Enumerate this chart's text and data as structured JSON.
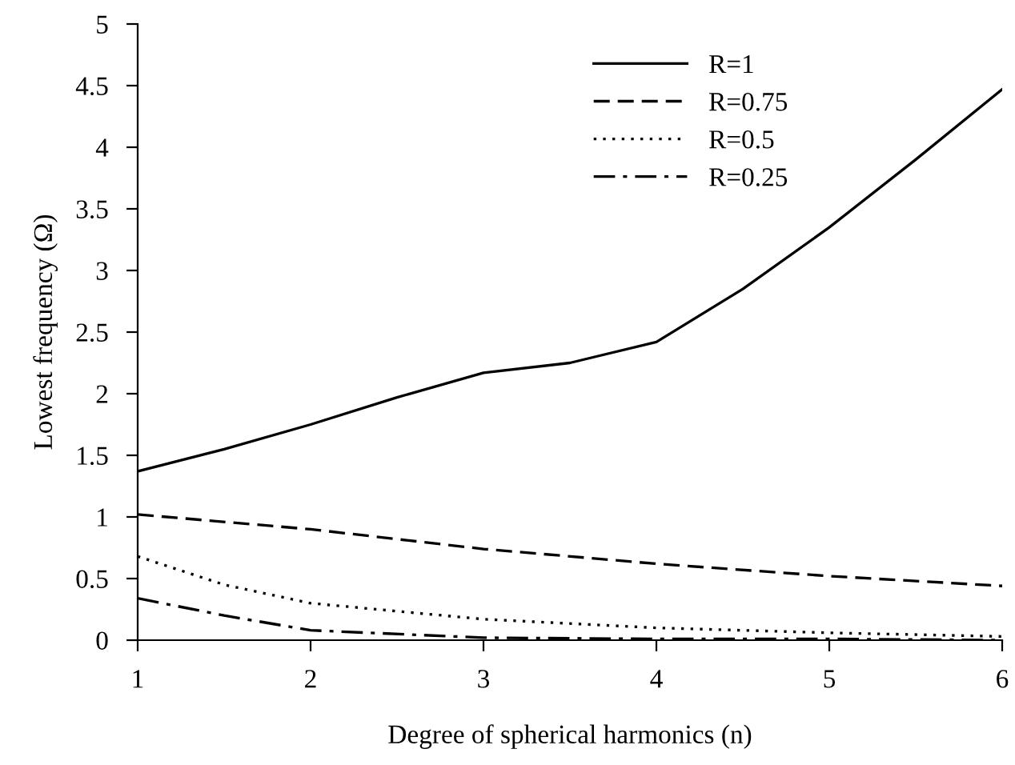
{
  "chart_data": {
    "type": "line",
    "xlabel": "Degree of spherical harmonics (n)",
    "ylabel": "Lowest frequency (Ω)",
    "xlim": [
      1,
      6
    ],
    "ylim": [
      0,
      5
    ],
    "xticks": [
      1,
      2,
      3,
      4,
      5,
      6
    ],
    "yticks": [
      0,
      0.5,
      1,
      1.5,
      2,
      2.5,
      3,
      3.5,
      4,
      4.5,
      5
    ],
    "grid": false,
    "legend": "top right",
    "marker": "none",
    "series": [
      {
        "name": "R=1",
        "color": "#000000",
        "line_style": "solid",
        "x": [
          1,
          1.5,
          2,
          2.5,
          3,
          3.5,
          4,
          4.5,
          5,
          5.5,
          6
        ],
        "values": [
          1.37,
          1.55,
          1.75,
          1.97,
          2.17,
          2.25,
          2.42,
          2.85,
          3.35,
          3.9,
          4.47
        ]
      },
      {
        "name": "R=0.75",
        "color": "#000000",
        "line_style": "dashed",
        "x": [
          1,
          2,
          3,
          4,
          5,
          6
        ],
        "values": [
          1.02,
          0.9,
          0.74,
          0.62,
          0.52,
          0.44
        ]
      },
      {
        "name": "R=0.5",
        "color": "#000000",
        "line_style": "dotted",
        "x": [
          1,
          1.5,
          2,
          3,
          4,
          5,
          6
        ],
        "values": [
          0.68,
          0.45,
          0.3,
          0.17,
          0.1,
          0.06,
          0.03
        ]
      },
      {
        "name": "R=0.25",
        "color": "#000000",
        "line_style": "dashdot",
        "x": [
          1,
          1.5,
          2,
          3,
          4,
          5,
          6
        ],
        "values": [
          0.34,
          0.2,
          0.08,
          0.02,
          0.01,
          0.01,
          0.0
        ]
      }
    ]
  }
}
